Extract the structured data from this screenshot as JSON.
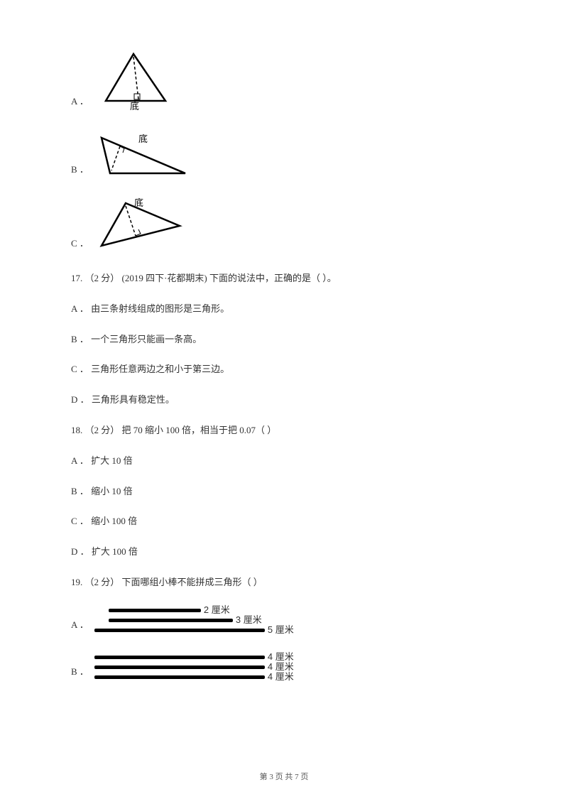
{
  "q16_options": {
    "A": {
      "letter": "A ．",
      "label": "底"
    },
    "B": {
      "letter": "B ．",
      "label": "底"
    },
    "C": {
      "letter": "C ．",
      "label": "底"
    }
  },
  "q17": {
    "stem": "17.  （2 分） (2019 四下·花都期末)  下面的说法中，正确的是（     ）。",
    "A": "A ．  由三条射线组成的图形是三角形。",
    "B": "B ．  一个三角形只能画一条高。",
    "C": "C ．  三角形任意两边之和小于第三边。",
    "D": "D ．  三角形具有稳定性。"
  },
  "q18": {
    "stem": "18.  （2 分）  把 70 缩小 100 倍，相当于把 0.07（     ）",
    "A": "A ．  扩大 10 倍",
    "B": "B ．  缩小 10 倍",
    "C": "C ．  缩小 100 倍",
    "D": "D ．  扩大 100 倍"
  },
  "q19": {
    "stem": "19.  （2 分）  下面哪组小棒不能拼成三角形（     ）",
    "A": {
      "letter": "A ．",
      "bars": [
        {
          "offset": 20,
          "length": 130,
          "label": "2 厘米"
        },
        {
          "offset": 20,
          "length": 175,
          "label": "3 厘米"
        },
        {
          "offset": 0,
          "length": 240,
          "label": "5 厘米"
        }
      ]
    },
    "B": {
      "letter": "B ．",
      "bars": [
        {
          "offset": 0,
          "length": 240,
          "label": "4 厘米"
        },
        {
          "offset": 0,
          "length": 240,
          "label": "4 厘米"
        },
        {
          "offset": 0,
          "length": 240,
          "label": "4 厘米"
        }
      ]
    }
  },
  "footer": "第 3 页 共 7 页",
  "colors": {
    "text": "#333333",
    "bg": "#ffffff",
    "stroke": "#000000"
  }
}
